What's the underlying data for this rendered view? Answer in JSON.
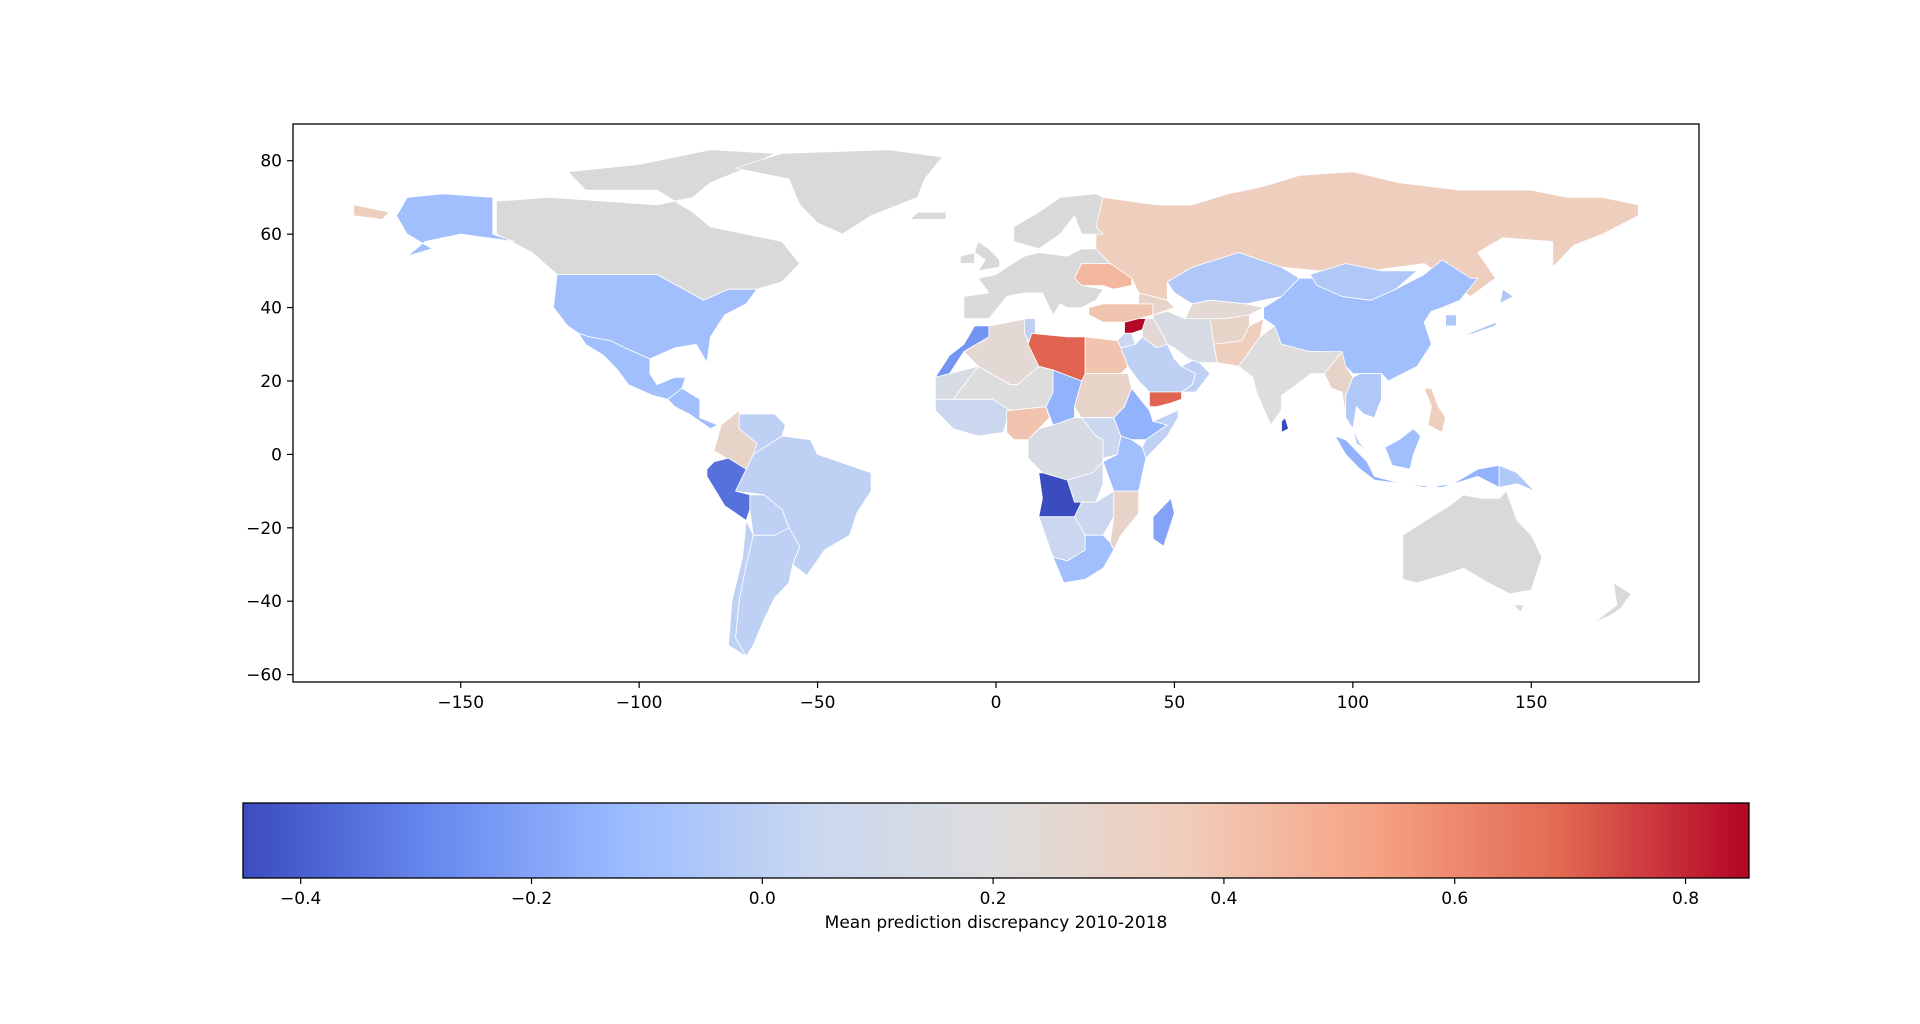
{
  "chart_data": {
    "type": "choropleth",
    "projection": "equirectangular",
    "xlim": [
      -197,
      197
    ],
    "ylim": [
      -62,
      90
    ],
    "x_ticks": [
      -150,
      -100,
      -50,
      0,
      50,
      100,
      150
    ],
    "y_ticks": [
      -60,
      -40,
      -20,
      0,
      20,
      40,
      60,
      80
    ],
    "x_tick_labels": [
      "−150",
      "−100",
      "−50",
      "0",
      "50",
      "100",
      "150"
    ],
    "y_tick_labels": [
      "−60",
      "−40",
      "−20",
      "0",
      "20",
      "40",
      "60",
      "80"
    ],
    "colormap": "coolwarm",
    "colormap_stops": [
      "#3b4cc0",
      "#6788ee",
      "#9abbff",
      "#c9d7f0",
      "#dddddd",
      "#f0cdbb",
      "#f6a385",
      "#e26952",
      "#b40426"
    ],
    "no_data_color": "#d9d9d9",
    "colorbar": {
      "min": -0.45,
      "max": 0.855,
      "ticks": [
        -0.4,
        -0.2,
        0.0,
        0.2,
        0.4,
        0.6,
        0.8
      ],
      "tick_labels": [
        "−0.4",
        "−0.2",
        "0.0",
        "0.2",
        "0.4",
        "0.6",
        "0.8"
      ],
      "label": "Mean prediction discrepancy 2010-2018",
      "orientation": "horizontal",
      "placement": "bottom"
    },
    "regions": [
      {
        "name": "Canada",
        "value": null
      },
      {
        "name": "Greenland",
        "value": null
      },
      {
        "name": "United States",
        "value": -0.1
      },
      {
        "name": "Alaska",
        "value": -0.1
      },
      {
        "name": "Mexico",
        "value": -0.1
      },
      {
        "name": "Brazil",
        "value": 0.0
      },
      {
        "name": "Argentina",
        "value": 0.0
      },
      {
        "name": "Colombia",
        "value": 0.3
      },
      {
        "name": "Peru",
        "value": -0.35
      },
      {
        "name": "Russia",
        "value": 0.35
      },
      {
        "name": "Europe",
        "value": null
      },
      {
        "name": "Ukraine",
        "value": 0.45
      },
      {
        "name": "Turkey",
        "value": 0.4
      },
      {
        "name": "Syria",
        "value": 0.85
      },
      {
        "name": "Libya",
        "value": 0.7
      },
      {
        "name": "Egypt",
        "value": 0.4
      },
      {
        "name": "Morocco",
        "value": -0.25
      },
      {
        "name": "Algeria",
        "value": 0.25
      },
      {
        "name": "Sudan",
        "value": 0.3
      },
      {
        "name": "Chad",
        "value": -0.15
      },
      {
        "name": "Nigeria",
        "value": 0.4
      },
      {
        "name": "Ethiopia",
        "value": -0.15
      },
      {
        "name": "Angola",
        "value": -0.45
      },
      {
        "name": "South Africa",
        "value": -0.1
      },
      {
        "name": "Madagascar",
        "value": -0.2
      },
      {
        "name": "Yemen",
        "value": 0.7
      },
      {
        "name": "Saudi Arabia",
        "value": 0.0
      },
      {
        "name": "Iran",
        "value": 0.15
      },
      {
        "name": "Pakistan",
        "value": 0.35
      },
      {
        "name": "India",
        "value": 0.2
      },
      {
        "name": "Sri Lanka",
        "value": -0.45
      },
      {
        "name": "Kazakhstan",
        "value": -0.05
      },
      {
        "name": "China",
        "value": -0.1
      },
      {
        "name": "Myanmar",
        "value": 0.3
      },
      {
        "name": "Philippines",
        "value": 0.35
      },
      {
        "name": "Indonesia",
        "value": -0.15
      },
      {
        "name": "Australia",
        "value": null
      },
      {
        "name": "New Zealand",
        "value": null
      }
    ]
  }
}
